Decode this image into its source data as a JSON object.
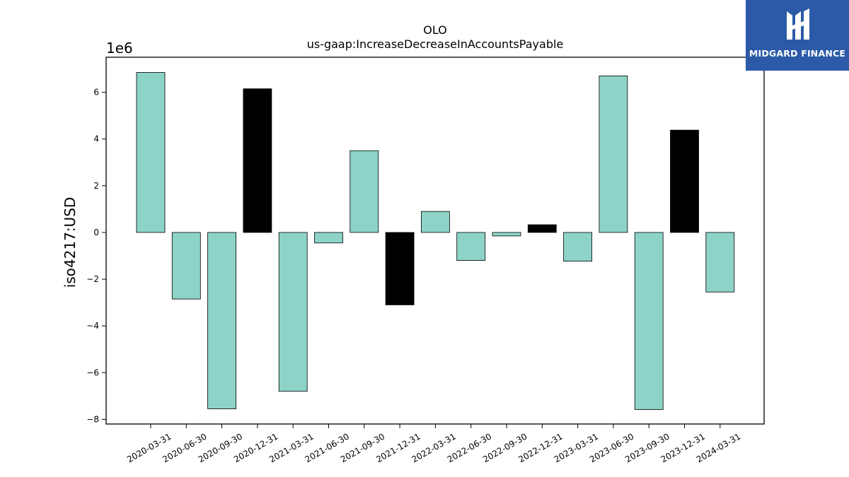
{
  "chart_data": {
    "type": "bar",
    "title": "OLO",
    "subtitle": "us-gaap:IncreaseDecreaseInAccountsPayable",
    "ylabel": "iso4217:USD",
    "xlabel": "",
    "y_scale_label": "1e6",
    "y_multiplier": 1000000,
    "ylim": [
      -8200000,
      7500000
    ],
    "yticks": [
      -8,
      -6,
      -4,
      -2,
      0,
      2,
      4,
      6
    ],
    "grid": false,
    "bar_fill": "#8dd3c7",
    "highlight_fill": "#000000",
    "categories": [
      "2020-03-31",
      "2020-06-30",
      "2020-09-30",
      "2020-12-31",
      "2021-03-31",
      "2021-06-30",
      "2021-09-30",
      "2021-12-31",
      "2022-03-31",
      "2022-06-30",
      "2022-09-30",
      "2022-12-31",
      "2023-03-31",
      "2023-06-30",
      "2023-09-30",
      "2023-12-31",
      "2024-03-31"
    ],
    "values": [
      6850000,
      -2850000,
      -7550000,
      6150000,
      -6800000,
      -450000,
      3500000,
      -3100000,
      900000,
      -1200000,
      -150000,
      330000,
      -1230000,
      6700000,
      -7580000,
      4380000,
      -2550000
    ],
    "highlight": [
      false,
      false,
      false,
      true,
      false,
      false,
      false,
      true,
      false,
      false,
      false,
      true,
      false,
      false,
      false,
      true,
      false
    ]
  },
  "logo": {
    "text": "MIDGARD FINANCE",
    "background": "#2c5aa8"
  }
}
